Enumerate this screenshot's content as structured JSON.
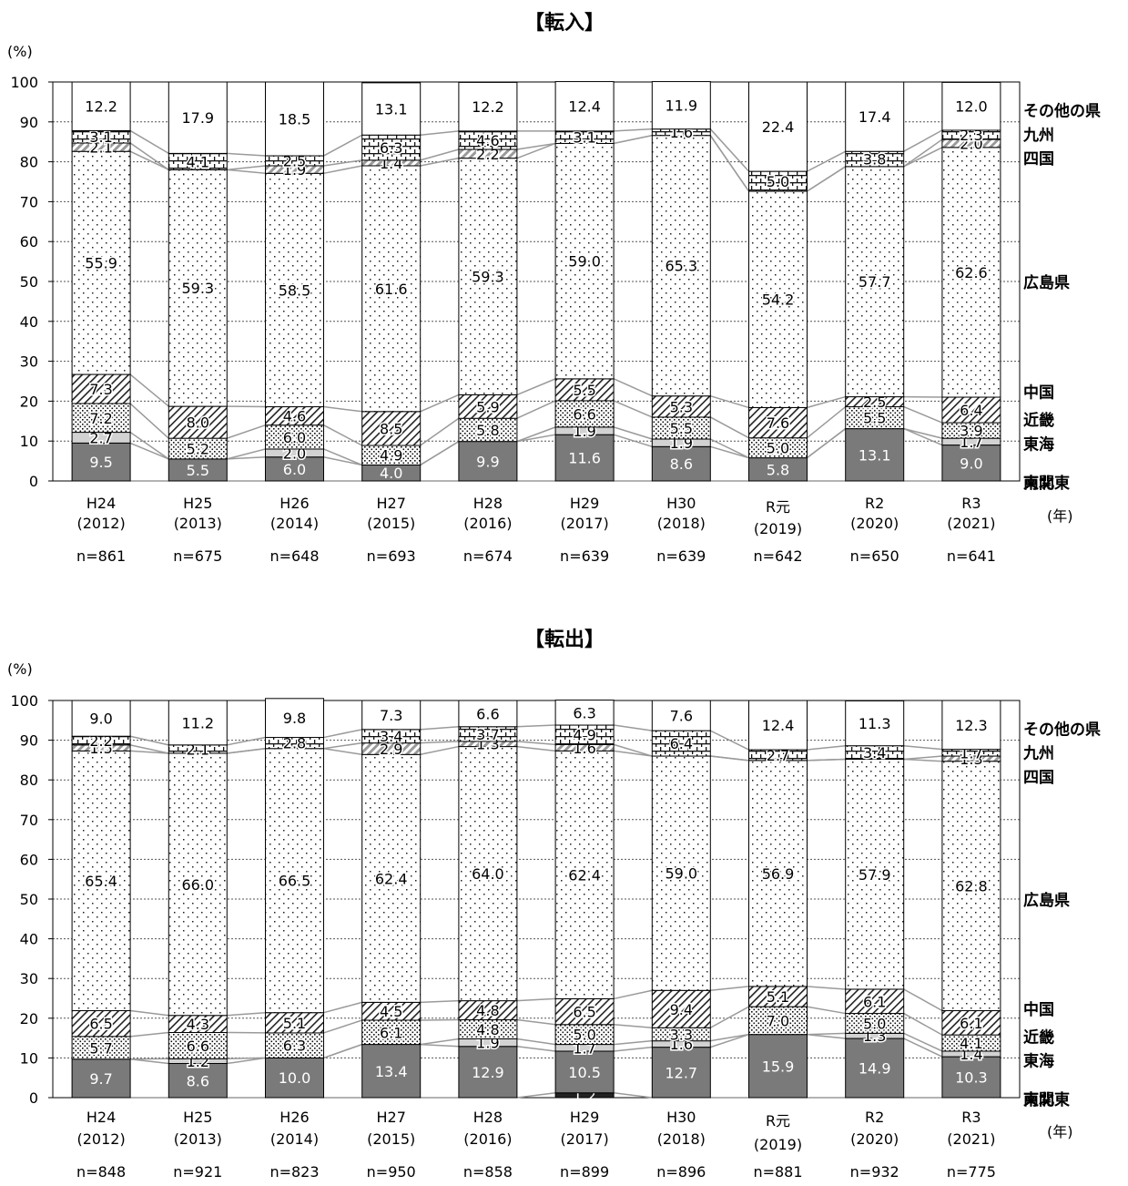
{
  "chart_data": [
    {
      "type": "bar",
      "stacked": true,
      "title": "【転入】",
      "ylabel": "(%)",
      "ylim": [
        0,
        100
      ],
      "yticks": [
        0,
        10,
        20,
        30,
        40,
        50,
        60,
        70,
        80,
        90,
        100
      ],
      "grid": true,
      "x_unit": "(年)",
      "legend_position": "right",
      "categories": [
        "H24",
        "H25",
        "H26",
        "H27",
        "H28",
        "H29",
        "H30",
        "R元",
        "R2",
        "R3"
      ],
      "years": [
        "(2012)",
        "(2013)",
        "(2014)",
        "(2015)",
        "(2016)",
        "(2017)",
        "(2018)",
        "(2019)",
        "(2020)",
        "(2021)"
      ],
      "n": [
        "n=861",
        "n=675",
        "n=648",
        "n=693",
        "n=674",
        "n=639",
        "n=639",
        "n=642",
        "n=650",
        "n=641"
      ],
      "series": [
        {
          "name": "東北",
          "pattern": "dark",
          "values": [
            0,
            0,
            0,
            0,
            0,
            0,
            0,
            0,
            0,
            0
          ],
          "labels": [
            "",
            "",
            "",
            "",
            "",
            "",
            "",
            "",
            "",
            ""
          ]
        },
        {
          "name": "南関東",
          "pattern": "gray",
          "values": [
            9.5,
            5.5,
            6.0,
            4.0,
            9.9,
            11.6,
            8.6,
            5.8,
            13.1,
            9.0
          ],
          "labels": [
            "9.5",
            "5.5",
            "6.0",
            "4.0",
            "9.9",
            "11.6",
            "8.6",
            "5.8",
            "13.1",
            "9.0"
          ]
        },
        {
          "name": "東海",
          "pattern": "light",
          "values": [
            2.7,
            0,
            2.0,
            0,
            0,
            1.9,
            1.9,
            0,
            0,
            1.7
          ],
          "labels": [
            "2.7",
            "",
            "2.0",
            "",
            "",
            "1.9",
            "1.9",
            "",
            "",
            "1.7"
          ]
        },
        {
          "name": "近畿",
          "pattern": "dots",
          "values": [
            7.2,
            5.2,
            6.0,
            4.9,
            5.8,
            6.6,
            5.5,
            5.0,
            5.5,
            3.9
          ],
          "labels": [
            "7.2",
            "5.2",
            "6.0",
            "4.9",
            "5.8",
            "6.6",
            "5.5",
            "5.0",
            "5.5",
            "3.9"
          ]
        },
        {
          "name": "中国",
          "pattern": "hatch",
          "values": [
            7.3,
            8.0,
            4.6,
            8.5,
            5.9,
            5.5,
            5.3,
            7.6,
            2.5,
            6.4
          ],
          "labels": [
            "7.3",
            "8.0",
            "4.6",
            "8.5",
            "5.9",
            "5.5",
            "5.3",
            "7.6",
            "2.5",
            "6.4"
          ]
        },
        {
          "name": "広島県",
          "pattern": "sparse",
          "values": [
            55.9,
            59.3,
            58.5,
            61.6,
            59.3,
            59.0,
            65.3,
            54.2,
            57.7,
            62.6
          ],
          "labels": [
            "55.9",
            "59.3",
            "58.5",
            "61.6",
            "59.3",
            "59.0",
            "65.3",
            "54.2",
            "57.7",
            "62.6"
          ]
        },
        {
          "name": "四国",
          "pattern": "grayhatch",
          "values": [
            2.1,
            0,
            1.9,
            1.4,
            2.2,
            0,
            0,
            0,
            0,
            2.0
          ],
          "labels": [
            "2.1",
            "",
            "1.9",
            "1.4",
            "2.2",
            "",
            "",
            "",
            "",
            "2.0"
          ]
        },
        {
          "name": "九州",
          "pattern": "brick",
          "values": [
            3.1,
            4.1,
            2.5,
            6.3,
            4.6,
            3.1,
            1.6,
            5.0,
            3.8,
            2.3
          ],
          "labels": [
            "3.1",
            "4.1",
            "2.5",
            "6.3",
            "4.6",
            "3.1",
            "1.6",
            "5.0",
            "3.8",
            "2.3"
          ]
        },
        {
          "name": "その他の県",
          "pattern": "white",
          "values": [
            12.2,
            17.9,
            18.5,
            13.1,
            12.2,
            12.4,
            11.9,
            22.4,
            17.4,
            12.0
          ],
          "labels": [
            "12.2",
            "17.9",
            "18.5",
            "13.1",
            "12.2",
            "12.4",
            "11.9",
            "22.4",
            "17.4",
            "12.0"
          ]
        }
      ]
    },
    {
      "type": "bar",
      "stacked": true,
      "title": "【転出】",
      "ylabel": "(%)",
      "ylim": [
        0,
        100
      ],
      "yticks": [
        0,
        10,
        20,
        30,
        40,
        50,
        60,
        70,
        80,
        90,
        100
      ],
      "grid": true,
      "x_unit": "(年)",
      "legend_position": "right",
      "categories": [
        "H24",
        "H25",
        "H26",
        "H27",
        "H28",
        "H29",
        "H30",
        "R元",
        "R2",
        "R3"
      ],
      "years": [
        "(2012)",
        "(2013)",
        "(2014)",
        "(2015)",
        "(2016)",
        "(2017)",
        "(2018)",
        "(2019)",
        "(2020)",
        "(2021)"
      ],
      "n": [
        "n=848",
        "n=921",
        "n=823",
        "n=950",
        "n=858",
        "n=899",
        "n=896",
        "n=881",
        "n=932",
        "n=775"
      ],
      "series": [
        {
          "name": "東北",
          "pattern": "dark",
          "values": [
            0,
            0,
            0,
            0,
            0,
            1.2,
            0,
            0,
            0,
            0
          ],
          "labels": [
            "",
            "",
            "",
            "",
            "",
            "1.2",
            "",
            "",
            "",
            ""
          ]
        },
        {
          "name": "南関東",
          "pattern": "gray",
          "values": [
            9.7,
            8.6,
            10.0,
            13.4,
            12.9,
            10.5,
            12.7,
            15.9,
            14.9,
            10.3
          ],
          "labels": [
            "9.7",
            "8.6",
            "10.0",
            "13.4",
            "12.9",
            "10.5",
            "12.7",
            "15.9",
            "14.9",
            "10.3"
          ]
        },
        {
          "name": "東海",
          "pattern": "light",
          "values": [
            0,
            1.2,
            0,
            0,
            1.9,
            1.7,
            1.6,
            0,
            1.3,
            1.4
          ],
          "labels": [
            "",
            "1.2",
            "",
            "",
            "1.9",
            "1.7",
            "1.6",
            "",
            "1.3",
            "1.4"
          ]
        },
        {
          "name": "近畿",
          "pattern": "dots",
          "values": [
            5.7,
            6.6,
            6.3,
            6.1,
            4.8,
            5.0,
            3.3,
            7.0,
            5.0,
            4.1
          ],
          "labels": [
            "5.7",
            "6.6",
            "6.3",
            "6.1",
            "4.8",
            "5.0",
            "3.3",
            "7.0",
            "5.0",
            "4.1"
          ]
        },
        {
          "name": "中国",
          "pattern": "hatch",
          "values": [
            6.5,
            4.3,
            5.1,
            4.5,
            4.8,
            6.5,
            9.4,
            5.1,
            6.1,
            6.1
          ],
          "labels": [
            "6.5",
            "4.3",
            "5.1",
            "4.5",
            "4.8",
            "6.5",
            "9.4",
            "5.1",
            "6.1",
            "6.1"
          ]
        },
        {
          "name": "広島県",
          "pattern": "sparse",
          "values": [
            65.4,
            66.0,
            66.5,
            62.4,
            64.0,
            62.4,
            59.0,
            56.9,
            57.9,
            62.8
          ],
          "labels": [
            "65.4",
            "66.0",
            "66.5",
            "62.4",
            "64.0",
            "62.4",
            "59.0",
            "56.9",
            "57.9",
            "62.8"
          ]
        },
        {
          "name": "四国",
          "pattern": "grayhatch",
          "values": [
            1.5,
            0,
            0,
            2.9,
            1.3,
            1.6,
            0,
            0,
            0,
            1.3
          ],
          "labels": [
            "1.5",
            "",
            "",
            "2.9",
            "1.3",
            "1.6",
            "",
            "",
            "",
            "1.3"
          ]
        },
        {
          "name": "九州",
          "pattern": "brick",
          "values": [
            2.2,
            2.1,
            2.8,
            3.4,
            3.7,
            4.9,
            6.4,
            2.7,
            3.4,
            1.7
          ],
          "labels": [
            "2.2",
            "2.1",
            "2.8",
            "3.4",
            "3.7",
            "4.9",
            "6.4",
            "2.7",
            "3.4",
            "1.7"
          ]
        },
        {
          "name": "その他の県",
          "pattern": "white",
          "values": [
            9.0,
            11.2,
            9.8,
            7.3,
            6.6,
            6.3,
            7.6,
            12.4,
            11.3,
            12.3
          ],
          "labels": [
            "9.0",
            "11.2",
            "9.8",
            "7.3",
            "6.6",
            "6.3",
            "7.6",
            "12.4",
            "11.3",
            "12.3"
          ]
        }
      ]
    }
  ]
}
